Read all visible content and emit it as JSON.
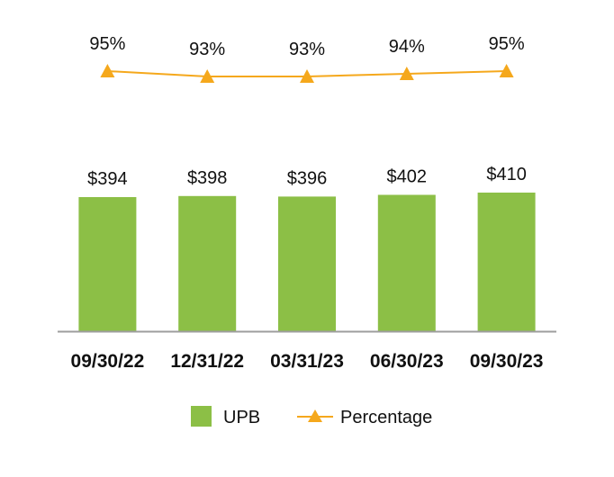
{
  "chart_data": {
    "type": "bar",
    "categories": [
      "09/30/22",
      "12/31/22",
      "03/31/23",
      "06/30/23",
      "09/30/23"
    ],
    "series": [
      {
        "name": "UPB",
        "type": "bar",
        "values": [
          394,
          398,
          396,
          402,
          410
        ],
        "labels": [
          "$394",
          "$398",
          "$396",
          "$402",
          "$410"
        ],
        "color": "#8cbf46"
      },
      {
        "name": "Percentage",
        "type": "line",
        "values": [
          95,
          93,
          93,
          94,
          95
        ],
        "labels": [
          "95%",
          "93%",
          "93%",
          "94%",
          "95%"
        ],
        "color": "#f5a81c",
        "marker": "triangle"
      }
    ],
    "title": "",
    "xlabel": "",
    "ylabel": "",
    "grid": false,
    "legend": "bottom-center"
  }
}
